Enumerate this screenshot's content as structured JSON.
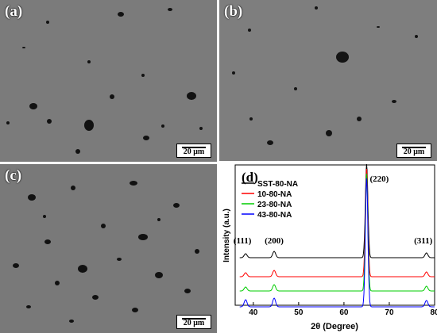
{
  "panels": [
    {
      "label": "(a)",
      "scale": "20 μm"
    },
    {
      "label": "(b)",
      "scale": "20 μm"
    },
    {
      "label": "(c)",
      "scale": "20 μm"
    }
  ],
  "chart_data": {
    "type": "line",
    "panel_label": "(d)",
    "xlabel": "2θ (Degree)",
    "ylabel": "Intensity (a.u.)",
    "xlim": [
      36,
      80
    ],
    "xticks": [
      40,
      50,
      60,
      70,
      80
    ],
    "legend_position": "top-left",
    "series": [
      {
        "name": "SST-80-NA",
        "color": "#000000"
      },
      {
        "name": "10-80-NA",
        "color": "#ff0000"
      },
      {
        "name": "23-80-NA",
        "color": "#00cc00"
      },
      {
        "name": "43-80-NA",
        "color": "#0000ff"
      }
    ],
    "peaks": [
      {
        "label": "(111)",
        "position": 38.3
      },
      {
        "label": "(200)",
        "position": 44.6
      },
      {
        "label": "(220)",
        "position": 65.0
      },
      {
        "label": "(311)",
        "position": 78.2
      }
    ]
  }
}
